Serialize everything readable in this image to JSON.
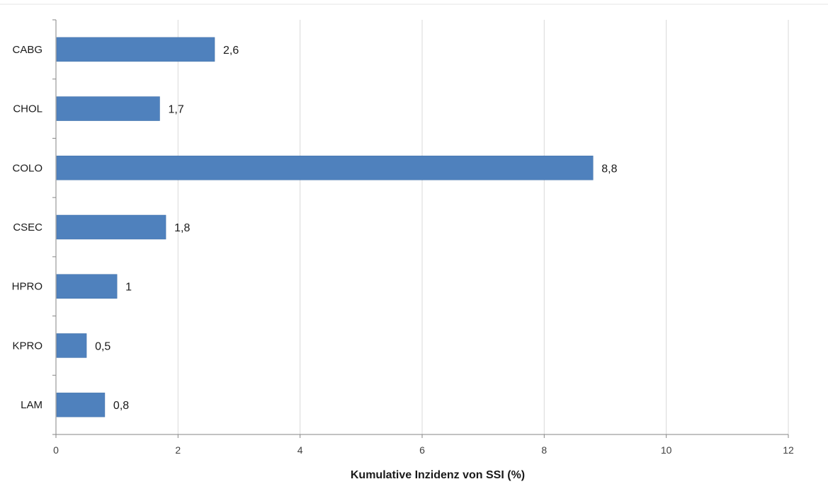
{
  "chart_data": {
    "type": "bar",
    "orientation": "horizontal",
    "categories": [
      "CABG",
      "CHOL",
      "COLO",
      "CSEC",
      "HPRO",
      "KPRO",
      "LAM"
    ],
    "values": [
      2.6,
      1.7,
      8.8,
      1.8,
      1,
      0.5,
      0.8
    ],
    "data_labels": [
      "2,6",
      "1,7",
      "8,8",
      "1,8",
      "1",
      "0,5",
      "0,8"
    ],
    "title": "",
    "xlabel": "Kumulative Inzidenz von SSI (%)",
    "ylabel": "",
    "xlim": [
      0,
      12
    ],
    "xticks": [
      0,
      2,
      4,
      6,
      8,
      10,
      12
    ],
    "xtick_labels": [
      "0",
      "2",
      "4",
      "6",
      "8",
      "10",
      "12"
    ],
    "grid": "vertical",
    "legend": "none",
    "bar_color": "#4f81bd"
  }
}
